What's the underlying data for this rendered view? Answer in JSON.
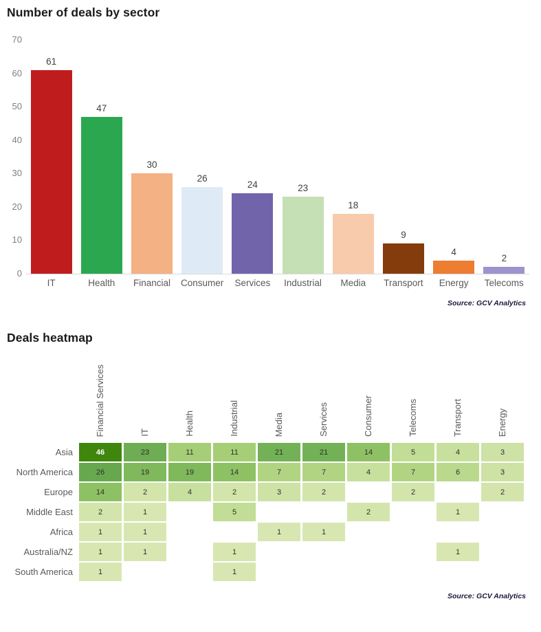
{
  "chart_data": [
    {
      "type": "bar",
      "title": "Number of deals by sector",
      "source": "Source: GCV Analytics",
      "categories": [
        "IT",
        "Health",
        "Financial",
        "Consumer",
        "Services",
        "Industrial",
        "Media",
        "Transport",
        "Energy",
        "Telecoms"
      ],
      "values": [
        61,
        47,
        30,
        26,
        24,
        23,
        18,
        9,
        4,
        2
      ],
      "bar_colors": [
        "#bf1d1d",
        "#2ba84f",
        "#f4b183",
        "#deebf7",
        "#7264ab",
        "#c5e0b4",
        "#f8cbad",
        "#843c0c",
        "#ed7d31",
        "#9c94cf"
      ],
      "xlabel": "",
      "ylabel": "",
      "ylim": [
        0,
        70
      ],
      "y_ticks": [
        0,
        10,
        20,
        30,
        40,
        50,
        60,
        70
      ],
      "grid": false,
      "value_labels": true,
      "legend": "none",
      "axis_label_color": "#7f7f7f",
      "baseline_color": "#d9d9d9"
    },
    {
      "type": "heatmap",
      "title": "Deals heatmap",
      "source": "Source: GCV Analytics",
      "columns": [
        "Financial Services",
        "IT",
        "Health",
        "Industrial",
        "Media",
        "Services",
        "Consumer",
        "Telecoms",
        "Transport",
        "Energy"
      ],
      "rows": [
        "Asia",
        "North America",
        "Europe",
        "Middle East",
        "Africa",
        "Australia/NZ",
        "South America"
      ],
      "cells": [
        [
          46,
          23,
          11,
          11,
          21,
          21,
          14,
          5,
          4,
          3
        ],
        [
          26,
          19,
          19,
          14,
          7,
          7,
          4,
          7,
          6,
          3
        ],
        [
          14,
          2,
          4,
          2,
          3,
          2,
          null,
          2,
          null,
          2
        ],
        [
          2,
          1,
          null,
          5,
          null,
          null,
          2,
          null,
          1,
          null
        ],
        [
          1,
          1,
          null,
          null,
          1,
          1,
          null,
          null,
          null,
          null
        ],
        [
          1,
          1,
          null,
          1,
          null,
          null,
          null,
          null,
          1,
          null
        ],
        [
          1,
          null,
          null,
          1,
          null,
          null,
          null,
          null,
          null,
          null
        ]
      ],
      "color_scale_anchors": [
        [
          1,
          "#d8e7b2"
        ],
        [
          5,
          "#c2dd96"
        ],
        [
          7,
          "#b1d483"
        ],
        [
          11,
          "#a5ce76"
        ],
        [
          14,
          "#8ec164"
        ],
        [
          19,
          "#80b95c"
        ],
        [
          21,
          "#73b156"
        ],
        [
          26,
          "#67a84e"
        ],
        [
          46,
          "#3f860d"
        ]
      ],
      "white_text_threshold": 40,
      "legend": "none",
      "grid": false
    }
  ]
}
